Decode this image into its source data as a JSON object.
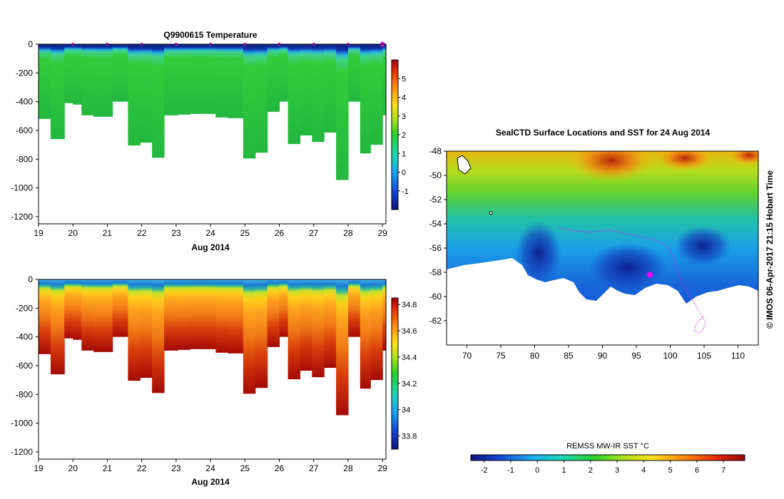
{
  "panels": {
    "temperature": {
      "title": "Q9900615  Temperature",
      "xlabel": "Aug 2014",
      "x_ticks": [
        "19",
        "20",
        "21",
        "22",
        "23",
        "24",
        "25",
        "26",
        "27",
        "28",
        "29"
      ],
      "y_ticks": [
        "0",
        "-200",
        "-400",
        "-600",
        "-800",
        "-1000",
        "-1200"
      ],
      "colorbar_ticks": [
        "5",
        "4",
        "3",
        "2",
        "1",
        "0",
        "-1"
      ]
    },
    "salinity": {
      "xlabel": "Aug 2014",
      "x_ticks": [
        "19",
        "20",
        "21",
        "22",
        "23",
        "24",
        "25",
        "26",
        "27",
        "28",
        "29"
      ],
      "y_ticks": [
        "0",
        "-200",
        "-400",
        "-600",
        "-800",
        "-1000",
        "-1200"
      ],
      "colorbar_ticks": [
        "34.8",
        "34.6",
        "34.4",
        "34.2",
        "34",
        "33.8"
      ]
    },
    "map": {
      "title": "SealCTD Surface Locations and SST for 24 Aug 2014",
      "lon_ticks": [
        "70",
        "75",
        "80",
        "85",
        "90",
        "95",
        "100",
        "105",
        "110"
      ],
      "lat_ticks": [
        "-48",
        "-50",
        "-52",
        "-54",
        "-56",
        "-58",
        "-60",
        "-62"
      ],
      "side_label": "© IMOS 06-Apr-2017 21:15 Hobart Time",
      "colorbar_label": "REMSS MW-IR SST °C",
      "colorbar_ticks": [
        "-2",
        "-1",
        "0",
        "1",
        "2",
        "3",
        "4",
        "5",
        "6",
        "7"
      ]
    }
  },
  "chart_data": [
    {
      "type": "heatmap",
      "title": "Q9900615  Temperature",
      "xlabel": "Aug 2014",
      "ylabel": "",
      "xlim": [
        19,
        29.1
      ],
      "ylim": [
        -1250,
        0
      ],
      "colorbar_range": [
        -2,
        6
      ],
      "units": "°C",
      "profiles": {
        "day": [
          19.0,
          19.35,
          19.75,
          20.0,
          20.25,
          20.6,
          21.15,
          21.6,
          21.95,
          22.3,
          22.65,
          23.05,
          23.4,
          23.75,
          24.15,
          24.5,
          24.95,
          25.3,
          25.65,
          26.0,
          26.25,
          26.6,
          26.95,
          27.3,
          27.65,
          28.0,
          28.35,
          28.65,
          29.0
        ],
        "max_depth": [
          520,
          660,
          410,
          420,
          495,
          505,
          400,
          705,
          685,
          790,
          495,
          490,
          485,
          485,
          510,
          515,
          795,
          755,
          470,
          400,
          695,
          635,
          680,
          615,
          945,
          400,
          760,
          700,
          495
        ]
      },
      "stations": [
        20,
        21,
        22,
        23,
        24,
        25,
        26,
        27,
        28,
        29
      ]
    },
    {
      "type": "heatmap",
      "title": "",
      "xlabel": "Aug 2014",
      "ylabel": "",
      "xlim": [
        19,
        29.1
      ],
      "ylim": [
        -1250,
        0
      ],
      "colorbar_range": [
        33.7,
        34.85
      ],
      "units": "PSU",
      "profiles": {
        "day": [
          19.0,
          19.35,
          19.75,
          20.0,
          20.25,
          20.6,
          21.15,
          21.6,
          21.95,
          22.3,
          22.65,
          23.05,
          23.4,
          23.75,
          24.15,
          24.5,
          24.95,
          25.3,
          25.65,
          26.0,
          26.25,
          26.6,
          26.95,
          27.3,
          27.65,
          28.0,
          28.35,
          28.65,
          29.0
        ],
        "max_depth": [
          520,
          660,
          410,
          420,
          495,
          505,
          400,
          705,
          685,
          790,
          495,
          490,
          485,
          485,
          510,
          515,
          795,
          755,
          470,
          400,
          695,
          635,
          680,
          615,
          945,
          400,
          760,
          700,
          495
        ]
      }
    },
    {
      "type": "heatmap",
      "title": "SealCTD Surface Locations and SST for 24 Aug 2014",
      "xlabel": "",
      "ylabel": "",
      "xlim": [
        67,
        113
      ],
      "ylim": [
        -64,
        -48
      ],
      "colorbar_label": "REMSS MW-IR SST °C",
      "colorbar_range": [
        -2.5,
        7.8
      ],
      "track": {
        "lon": [
          83.5,
          86,
          88.5,
          91,
          93.5,
          96,
          98,
          99.5,
          100.3,
          100.8,
          101.2,
          101.7,
          102.5,
          103.3,
          104,
          104.8,
          103.9,
          103.5,
          104.5,
          105.2,
          104.8
        ],
        "lat": [
          -54.3,
          -54.6,
          -54.7,
          -54.5,
          -54.8,
          -55.1,
          -55.4,
          -55.8,
          -56.5,
          -57.3,
          -58.1,
          -58.9,
          -59.6,
          -60.3,
          -61.0,
          -61.7,
          -62.2,
          -62.8,
          -63.0,
          -62.3,
          -61.6
        ]
      },
      "current_location": {
        "lon": 97,
        "lat": -58.2
      }
    }
  ]
}
